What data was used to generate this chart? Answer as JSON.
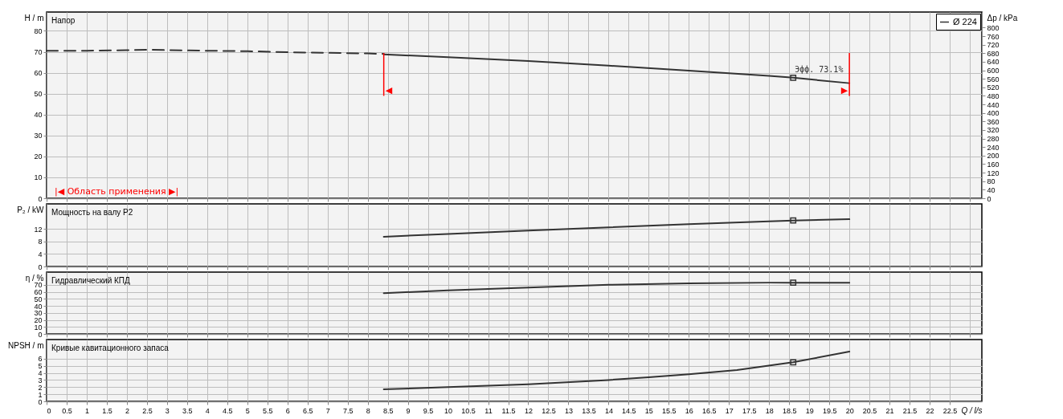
{
  "chart_data": [
    {
      "type": "line",
      "title": "Напор",
      "ylabel": "H / m",
      "y2label": "Δp / kPa",
      "xlim": [
        0,
        23.3
      ],
      "xticks": [
        0,
        0.5,
        1,
        1.5,
        2,
        2.5,
        3,
        3.5,
        4,
        4.5,
        5,
        5.5,
        6,
        6.5,
        7,
        7.5,
        8,
        8.5,
        9,
        9.5,
        10,
        10.5,
        11,
        11.5,
        12,
        12.5,
        13,
        13.5,
        14,
        14.5,
        15,
        15.5,
        16,
        16.5,
        17,
        17.5,
        18,
        18.5,
        19,
        19.5,
        20,
        20.5,
        21,
        21.5,
        22,
        22.5,
        23
      ],
      "ylim": [
        0,
        89
      ],
      "yticks": [
        0,
        10,
        20,
        30,
        40,
        50,
        60,
        70,
        80
      ],
      "y2lim": [
        0,
        873
      ],
      "y2ticks": [
        0,
        40,
        80,
        120,
        160,
        200,
        240,
        280,
        320,
        360,
        400,
        440,
        480,
        520,
        560,
        600,
        640,
        680,
        720,
        760,
        800
      ],
      "grid": true,
      "tick_labels": "y",
      "legend": "top right",
      "series": [
        {
          "name": "Ø 224",
          "color": "#333333",
          "x": [
            8.4,
            10,
            12,
            14,
            16,
            18,
            18.6,
            20
          ],
          "values": [
            68.8,
            67.4,
            65.6,
            63.4,
            61.0,
            58.5,
            57.6,
            55.0
          ]
        },
        {
          "color": "#333333",
          "line_style": "dashed",
          "x": [
            0,
            1,
            2,
            2.5,
            3,
            4,
            5,
            6,
            7,
            8,
            8.4
          ],
          "values": [
            70.5,
            70.5,
            70.8,
            71,
            70.8,
            70.5,
            70.3,
            69.8,
            69.5,
            69.2,
            69.0
          ]
        },
        {
          "type": "scatter",
          "marker": "square",
          "color": "#333333",
          "x": [
            18.6
          ],
          "values": [
            57.6
          ]
        }
      ],
      "ref_lines": [
        {
          "axis": "x",
          "value": 8.4,
          "label": "◀",
          "color": "#ff0000"
        },
        {
          "axis": "x",
          "value": 20,
          "label": "▶",
          "color": "#ff0000"
        }
      ],
      "annotations": [
        {
          "text": "Эфф. 73.1%",
          "x": 18.6,
          "y": 57.6
        },
        "|◀ Область применения ▶|"
      ]
    },
    {
      "type": "line",
      "title": "Мощность на валу P2",
      "ylabel": "P₂ / kW",
      "xlim": [
        0,
        23.3
      ],
      "xticks": [
        0,
        0.5,
        1,
        1.5,
        2,
        2.5,
        3,
        3.5,
        4,
        4.5,
        5,
        5.5,
        6,
        6.5,
        7,
        7.5,
        8,
        8.5,
        9,
        9.5,
        10,
        10.5,
        11,
        11.5,
        12,
        12.5,
        13,
        13.5,
        14,
        14.5,
        15,
        15.5,
        16,
        16.5,
        17,
        17.5,
        18,
        18.5,
        19,
        19.5,
        20,
        20.5,
        21,
        21.5,
        22,
        22.5,
        23
      ],
      "ylim": [
        0,
        20
      ],
      "yticks": [
        0,
        4,
        8,
        12
      ],
      "grid": true,
      "tick_labels": "y",
      "series": [
        {
          "color": "#333333",
          "x": [
            8.4,
            10,
            12,
            14,
            16,
            18,
            18.6,
            20
          ],
          "values": [
            9.5,
            10.4,
            11.5,
            12.5,
            13.5,
            14.4,
            14.7,
            15.1
          ]
        },
        {
          "type": "scatter",
          "marker": "square",
          "color": "#333333",
          "x": [
            18.6
          ],
          "values": [
            14.7
          ]
        }
      ]
    },
    {
      "type": "line",
      "title": "Гидравлический КПД",
      "ylabel": "η / %",
      "xlim": [
        0,
        23.3
      ],
      "xticks": [
        0,
        0.5,
        1,
        1.5,
        2,
        2.5,
        3,
        3.5,
        4,
        4.5,
        5,
        5.5,
        6,
        6.5,
        7,
        7.5,
        8,
        8.5,
        9,
        9.5,
        10,
        10.5,
        11,
        11.5,
        12,
        12.5,
        13,
        13.5,
        14,
        14.5,
        15,
        15.5,
        16,
        16.5,
        17,
        17.5,
        18,
        18.5,
        19,
        19.5,
        20,
        20.5,
        21,
        21.5,
        22,
        22.5,
        23
      ],
      "ylim": [
        0,
        88
      ],
      "yticks": [
        0,
        10,
        20,
        30,
        40,
        50,
        60,
        70
      ],
      "grid": true,
      "tick_labels": "y",
      "series": [
        {
          "color": "#333333",
          "x": [
            8.4,
            10,
            12,
            14,
            16,
            18,
            18.6,
            20
          ],
          "values": [
            58,
            62,
            66,
            70,
            72,
            73,
            73,
            73
          ]
        },
        {
          "type": "scatter",
          "marker": "square",
          "color": "#333333",
          "x": [
            18.6
          ],
          "values": [
            73
          ]
        }
      ]
    },
    {
      "type": "line",
      "title": "Кривые кавитационного запаса",
      "ylabel": "NPSH / m",
      "xlabel": "Q / l/s",
      "xlim": [
        0,
        23.3
      ],
      "xticks": [
        0,
        0.5,
        1,
        1.5,
        2,
        2.5,
        3,
        3.5,
        4,
        4.5,
        5,
        5.5,
        6,
        6.5,
        7,
        7.5,
        8,
        8.5,
        9,
        9.5,
        10,
        10.5,
        11,
        11.5,
        12,
        12.5,
        13,
        13.5,
        14,
        14.5,
        15,
        15.5,
        16,
        16.5,
        17,
        17.5,
        18,
        18.5,
        19,
        19.5,
        20,
        20.5,
        21,
        21.5,
        22,
        22.5
      ],
      "ylim": [
        0,
        8.7
      ],
      "yticks": [
        0,
        1,
        2,
        3,
        4,
        5,
        6
      ],
      "grid": true,
      "series": [
        {
          "color": "#333333",
          "x": [
            8.4,
            10,
            12,
            14,
            15,
            16,
            17.2,
            18.6,
            20
          ],
          "values": [
            1.7,
            2.0,
            2.4,
            3.0,
            3.4,
            3.8,
            4.4,
            5.5,
            7.0
          ]
        },
        {
          "type": "scatter",
          "marker": "square",
          "color": "#333333",
          "x": [
            18.6
          ],
          "values": [
            5.5
          ]
        }
      ]
    }
  ]
}
